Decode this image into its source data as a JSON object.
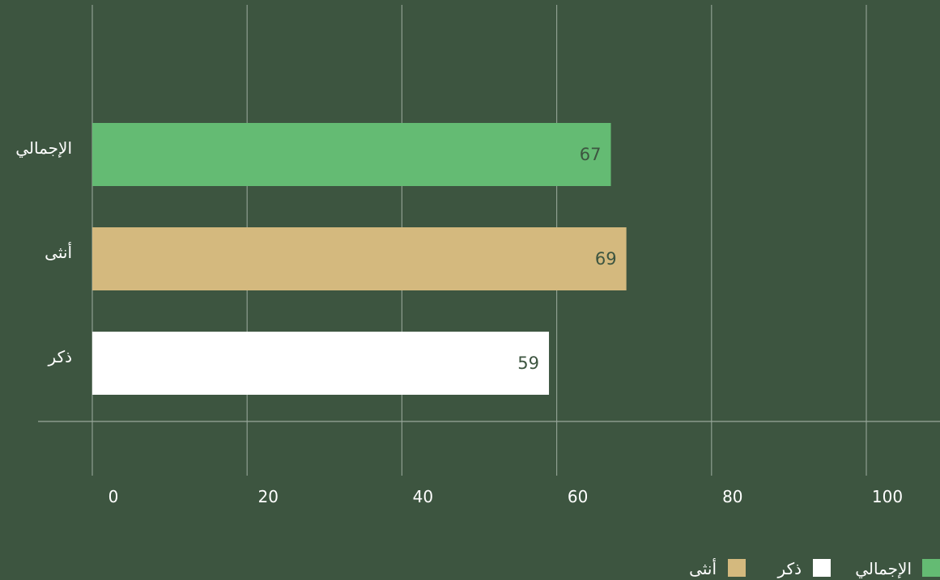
{
  "chart_data": {
    "type": "bar",
    "orientation": "horizontal",
    "categories": [
      "الإجمالي",
      "أنثى",
      "ذكر"
    ],
    "values": [
      67,
      69,
      59
    ],
    "colors": [
      "#64bb73",
      "#d4b97e",
      "#ffffff"
    ],
    "xlim": [
      0,
      110
    ],
    "x_ticks": [
      0,
      20,
      40,
      60,
      80,
      100
    ],
    "grid": true,
    "legend_position": "bottom-right",
    "legend": [
      {
        "label": "الإجمالي",
        "color": "#64bb73"
      },
      {
        "label": "ذكر",
        "color": "#ffffff"
      },
      {
        "label": "أنثى",
        "color": "#d4b97e"
      }
    ]
  }
}
